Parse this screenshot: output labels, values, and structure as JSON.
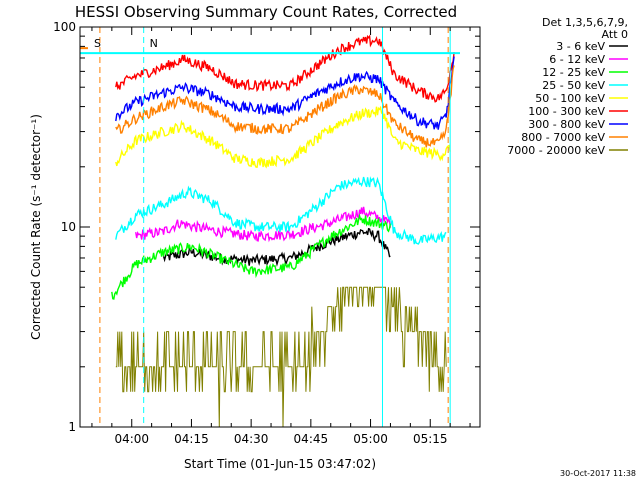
{
  "chart_data": {
    "type": "line",
    "title": "HESSI Observing Summary Count Rates, Corrected",
    "xlabel": "Start Time (01-Jun-15 03:47:02)",
    "ylabel": "Corrected Count Rate (s⁻¹ detector⁻¹)",
    "y_scale": "log",
    "ylim": [
      1,
      100
    ],
    "xlim_minutes_of_day": [
      227,
      327.5
    ],
    "x_ticks": [
      {
        "label": "04:00",
        "t": 240
      },
      {
        "label": "04:15",
        "t": 255
      },
      {
        "label": "04:30",
        "t": 270
      },
      {
        "label": "04:45",
        "t": 285
      },
      {
        "label": "05:00",
        "t": 300
      },
      {
        "label": "05:15",
        "t": 315
      }
    ],
    "y_ticks": [
      {
        "label": "100",
        "v": 100
      },
      {
        "label": "10",
        "v": 10
      },
      {
        "label": "1",
        "v": 1
      }
    ],
    "legend_header": [
      "Det 1,3,5,6,7,9,",
      "Att 0"
    ],
    "legend_position": "top-right, outside plot",
    "series": [
      {
        "name": "3 - 6 keV",
        "color": "#000000",
        "points": [
          [
            248,
            7
          ],
          [
            255,
            7.5
          ],
          [
            262,
            7
          ],
          [
            270,
            6.8
          ],
          [
            280,
            7
          ],
          [
            290,
            8.5
          ],
          [
            298,
            9.5
          ],
          [
            302,
            9
          ],
          [
            305,
            7
          ]
        ]
      },
      {
        "name": "6 - 12 keV",
        "color": "#ff00ff",
        "points": [
          [
            241,
            9
          ],
          [
            248,
            9.5
          ],
          [
            252,
            10.5
          ],
          [
            256,
            10
          ],
          [
            262,
            9.5
          ],
          [
            270,
            9
          ],
          [
            280,
            9.2
          ],
          [
            290,
            10.5
          ],
          [
            298,
            12
          ],
          [
            305,
            10.5
          ]
        ]
      },
      {
        "name": "12 - 25 keV",
        "color": "#00ff00",
        "points": [
          [
            235,
            4.5
          ],
          [
            241,
            6.5
          ],
          [
            248,
            7.5
          ],
          [
            255,
            8
          ],
          [
            262,
            7
          ],
          [
            270,
            6
          ],
          [
            280,
            6.3
          ],
          [
            290,
            9
          ],
          [
            298,
            11
          ],
          [
            305,
            10
          ]
        ]
      },
      {
        "name": "25 - 50 keV",
        "color": "#00ffff",
        "points": [
          [
            236,
            9
          ],
          [
            241,
            11.5
          ],
          [
            248,
            13
          ],
          [
            254,
            15
          ],
          [
            260,
            13.5
          ],
          [
            266,
            10.5
          ],
          [
            272,
            10
          ],
          [
            280,
            10
          ],
          [
            286,
            12.5
          ],
          [
            292,
            16
          ],
          [
            298,
            17
          ],
          [
            302,
            16.5
          ],
          [
            306,
            9.5
          ],
          [
            312,
            8.5
          ],
          [
            319,
            9
          ]
        ]
      },
      {
        "name": "50 - 100 keV",
        "color": "#ffff00",
        "points": [
          [
            236,
            21
          ],
          [
            241,
            27
          ],
          [
            248,
            30
          ],
          [
            253,
            32
          ],
          [
            260,
            27
          ],
          [
            266,
            22
          ],
          [
            272,
            21
          ],
          [
            280,
            22
          ],
          [
            286,
            27
          ],
          [
            292,
            33
          ],
          [
            298,
            37
          ],
          [
            303,
            38
          ],
          [
            306,
            27
          ],
          [
            312,
            24
          ],
          [
            318,
            23
          ],
          [
            320,
            25
          ]
        ]
      },
      {
        "name": "100 - 300 keV",
        "color": "#ff0000",
        "points": [
          [
            236,
            50
          ],
          [
            241,
            57
          ],
          [
            248,
            63
          ],
          [
            253,
            69
          ],
          [
            260,
            62
          ],
          [
            266,
            52
          ],
          [
            272,
            51
          ],
          [
            280,
            51
          ],
          [
            286,
            63
          ],
          [
            292,
            77
          ],
          [
            297,
            84
          ],
          [
            302,
            86
          ],
          [
            306,
            58
          ],
          [
            312,
            48
          ],
          [
            317,
            44
          ],
          [
            319,
            48
          ],
          [
            321,
            75
          ]
        ]
      },
      {
        "name": "300 - 800 keV",
        "color": "#0000ff",
        "points": [
          [
            236,
            36
          ],
          [
            241,
            42
          ],
          [
            248,
            47
          ],
          [
            253,
            50
          ],
          [
            260,
            46
          ],
          [
            266,
            40
          ],
          [
            272,
            39
          ],
          [
            280,
            39
          ],
          [
            286,
            46
          ],
          [
            292,
            53
          ],
          [
            297,
            57
          ],
          [
            302,
            55
          ],
          [
            306,
            42
          ],
          [
            312,
            34
          ],
          [
            317,
            32
          ],
          [
            319,
            36
          ],
          [
            321,
            70
          ]
        ]
      },
      {
        "name": "800 - 7000 keV",
        "color": "#ff8000",
        "points": [
          [
            236,
            30
          ],
          [
            241,
            35
          ],
          [
            248,
            40
          ],
          [
            253,
            43
          ],
          [
            260,
            38
          ],
          [
            266,
            32
          ],
          [
            272,
            31
          ],
          [
            280,
            31
          ],
          [
            286,
            38
          ],
          [
            292,
            45
          ],
          [
            297,
            49
          ],
          [
            302,
            46
          ],
          [
            306,
            33
          ],
          [
            312,
            27
          ],
          [
            317,
            26
          ],
          [
            319,
            30
          ],
          [
            321,
            65
          ]
        ]
      },
      {
        "name": "7000 - 20000 keV",
        "color": "#808000",
        "points": [
          [
            236,
            2
          ],
          [
            241,
            2
          ],
          [
            248,
            1.5
          ],
          [
            255,
            2
          ],
          [
            262,
            1.5
          ],
          [
            270,
            2
          ],
          [
            278,
            1.5
          ],
          [
            285,
            2
          ],
          [
            289,
            3
          ],
          [
            293,
            4
          ],
          [
            300,
            5
          ],
          [
            304,
            4
          ],
          [
            308,
            3
          ],
          [
            314,
            2
          ],
          [
            319,
            2
          ]
        ]
      }
    ],
    "annotations": [
      {
        "label": "S",
        "color": "#ff8000",
        "t": 229
      },
      {
        "label": "N",
        "color": "#00ffff",
        "t": 243
      }
    ],
    "vertical_markers": [
      {
        "t": 232,
        "color": "#ff8000",
        "style": "dashed"
      },
      {
        "t": 243,
        "color": "#00ffff",
        "style": "dashed"
      },
      {
        "t": 303,
        "color": "#00ffff",
        "style": "solid"
      },
      {
        "t": 319.5,
        "color": "#ff8000",
        "style": "dashed"
      },
      {
        "t": 320,
        "color": "#00ffff",
        "style": "solid"
      }
    ],
    "cyan_bar_level": 74,
    "footer": "30-Oct-2017 11:38"
  }
}
